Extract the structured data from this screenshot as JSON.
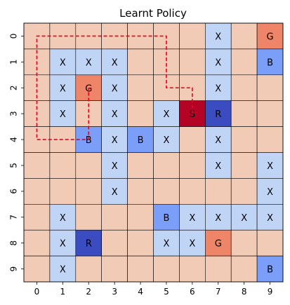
{
  "chart_data": {
    "type": "heatmap",
    "title": "Learnt Policy",
    "x_ticks": [
      "0",
      "1",
      "2",
      "3",
      "4",
      "5",
      "6",
      "7",
      "8",
      "9"
    ],
    "y_ticks": [
      "0",
      "1",
      "2",
      "3",
      "4",
      "5",
      "6",
      "7",
      "8",
      "9"
    ],
    "grid": true,
    "legend": "none",
    "colors": {
      "empty": "#f2cbb7",
      "X": "#c0d4f5",
      "B": "#7b9ff9",
      "G": "#ee8468",
      "R": "#3b4cc0",
      "S": "#b40426",
      "path": "#e8001c",
      "gridline": "#000000"
    },
    "grid_cells": [
      [
        "",
        "",
        "",
        "",
        "",
        "",
        "",
        "X",
        "",
        "G"
      ],
      [
        "",
        "X",
        "X",
        "X",
        "",
        "",
        "",
        "X",
        "",
        "B"
      ],
      [
        "",
        "X",
        "G",
        "X",
        "",
        "",
        "",
        "X",
        "",
        ""
      ],
      [
        "",
        "X",
        "",
        "X",
        "",
        "X",
        "S",
        "R",
        "",
        ""
      ],
      [
        "",
        "",
        "B",
        "X",
        "B",
        "X",
        "",
        "X",
        "",
        ""
      ],
      [
        "",
        "",
        "",
        "X",
        "",
        "",
        "",
        "X",
        "",
        "X"
      ],
      [
        "",
        "",
        "",
        "X",
        "",
        "",
        "",
        "",
        "",
        "X"
      ],
      [
        "",
        "X",
        "",
        "",
        "",
        "B",
        "X",
        "X",
        "X",
        "X"
      ],
      [
        "",
        "X",
        "R",
        "",
        "",
        "X",
        "X",
        "G",
        "",
        ""
      ],
      [
        "",
        "X",
        "",
        "",
        "",
        "",
        "",
        "",
        "",
        "B"
      ]
    ],
    "path": {
      "style": "dashed",
      "points": [
        [
          6,
          3
        ],
        [
          6,
          2
        ],
        [
          5,
          2
        ],
        [
          5,
          0
        ],
        [
          0,
          0
        ],
        [
          0,
          4
        ],
        [
          2,
          4
        ],
        [
          2,
          2
        ]
      ]
    }
  }
}
